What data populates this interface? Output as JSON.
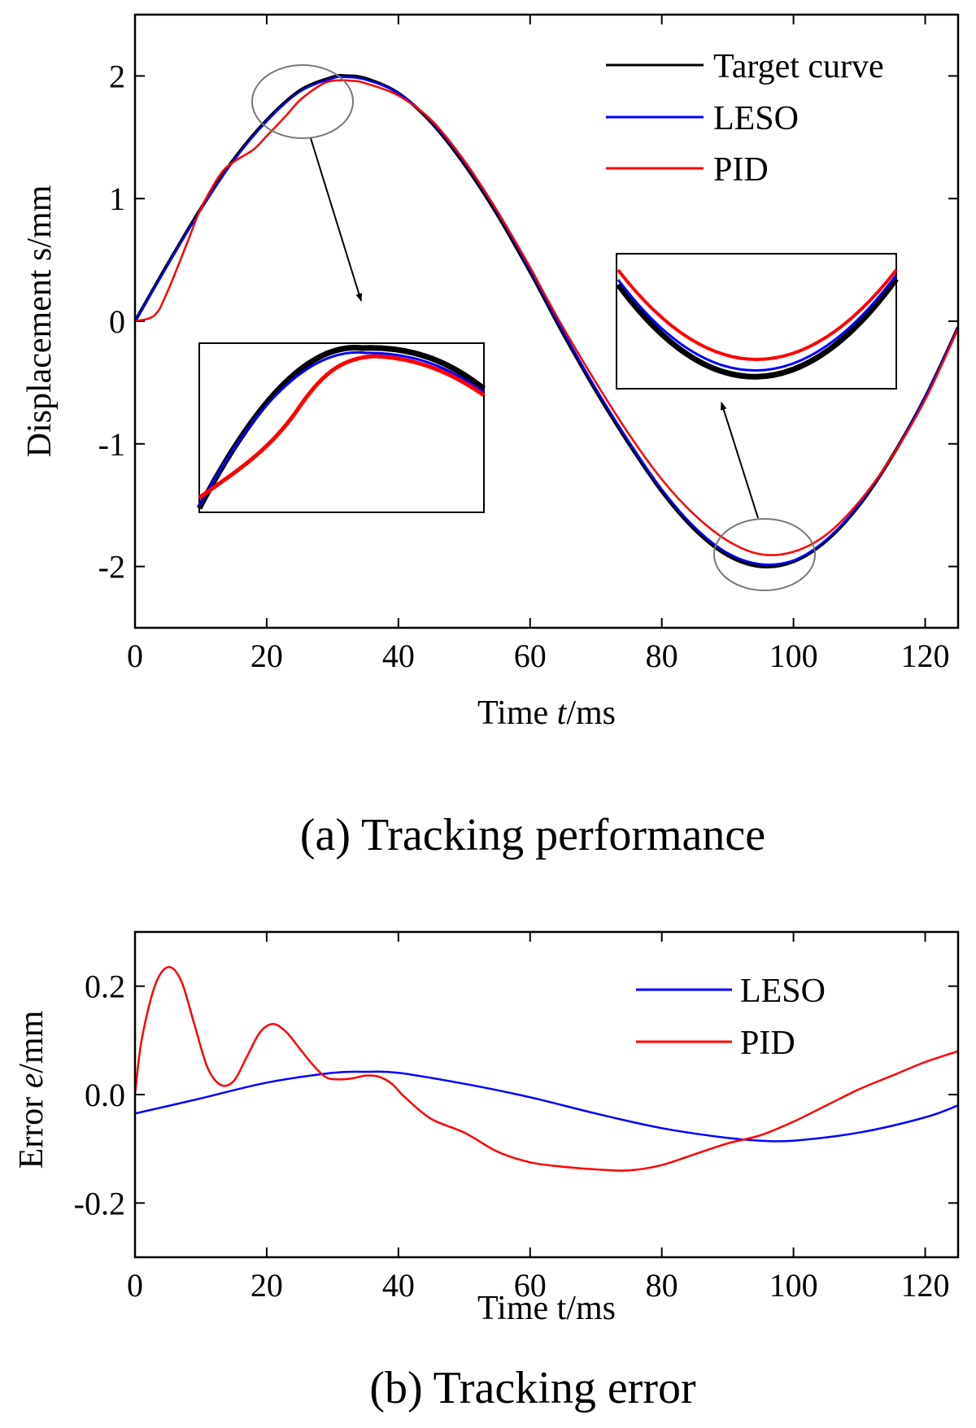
{
  "chart_data": [
    {
      "id": "panel_a",
      "type": "line",
      "title": "",
      "caption": "(a) Tracking performance",
      "xlabel": "Time t/ms",
      "ylabel": "Displacement s/mm",
      "xlim": [
        0,
        125
      ],
      "ylim": [
        -2.5,
        2.5
      ],
      "xticks": [
        0,
        20,
        40,
        60,
        80,
        100,
        120
      ],
      "yticks": [
        -2,
        -1,
        0,
        1,
        2
      ],
      "legend": "top-right",
      "series": [
        {
          "name": "Target curve",
          "color": "#000000",
          "x": [
            0,
            5,
            10,
            15,
            20,
            25,
            30,
            32,
            35,
            40,
            45,
            50,
            55,
            60,
            62,
            65,
            70,
            75,
            80,
            85,
            90,
            95,
            100,
            105,
            110,
            115,
            120,
            125
          ],
          "y": [
            0,
            0.47,
            0.92,
            1.32,
            1.64,
            1.88,
            1.99,
            2.0,
            1.98,
            1.86,
            1.62,
            1.28,
            0.87,
            0.4,
            0.2,
            -0.1,
            -0.57,
            -1.0,
            -1.39,
            -1.7,
            -1.91,
            -2.0,
            -1.96,
            -1.79,
            -1.5,
            -1.1,
            -0.62,
            -0.05
          ]
        },
        {
          "name": "LESO",
          "color": "#0000ff",
          "x": [
            0,
            5,
            10,
            15,
            20,
            25,
            30,
            32,
            35,
            40,
            45,
            50,
            55,
            60,
            62,
            65,
            70,
            75,
            80,
            85,
            90,
            95,
            100,
            105,
            110,
            115,
            120,
            125
          ],
          "y": [
            0,
            0.46,
            0.91,
            1.31,
            1.63,
            1.87,
            1.98,
            1.99,
            1.97,
            1.86,
            1.63,
            1.3,
            0.89,
            0.42,
            0.22,
            -0.08,
            -0.55,
            -0.98,
            -1.37,
            -1.68,
            -1.89,
            -1.98,
            -1.95,
            -1.78,
            -1.49,
            -1.1,
            -0.62,
            -0.05
          ]
        },
        {
          "name": "PID",
          "color": "#ff0000",
          "x": [
            0,
            3,
            5,
            8,
            10,
            13,
            15,
            18,
            20,
            23,
            25,
            28,
            30,
            33,
            35,
            40,
            45,
            50,
            55,
            60,
            62,
            65,
            70,
            75,
            80,
            85,
            90,
            95,
            100,
            105,
            110,
            115,
            120,
            125
          ],
          "y": [
            0,
            0.05,
            0.25,
            0.65,
            0.92,
            1.2,
            1.3,
            1.4,
            1.51,
            1.68,
            1.8,
            1.92,
            1.96,
            1.96,
            1.94,
            1.84,
            1.64,
            1.31,
            0.9,
            0.44,
            0.24,
            -0.05,
            -0.5,
            -0.92,
            -1.29,
            -1.58,
            -1.79,
            -1.9,
            -1.88,
            -1.74,
            -1.47,
            -1.1,
            -0.64,
            -0.06
          ]
        }
      ],
      "annotations": [
        "zoom inset near peak (t≈25 ms)",
        "zoom inset near trough (t≈95 ms)"
      ]
    },
    {
      "id": "panel_b",
      "type": "line",
      "title": "",
      "caption": "(b) Tracking error",
      "xlabel": "Time t/ms",
      "ylabel": "Error e/mm",
      "xlim": [
        0,
        125
      ],
      "ylim": [
        -0.3,
        0.3
      ],
      "xticks": [
        0,
        20,
        40,
        60,
        80,
        100,
        120
      ],
      "yticks": [
        -0.2,
        0.0,
        0.2
      ],
      "ytick_labels": [
        "-0.2",
        "0.0",
        "0.2"
      ],
      "legend": "top-right",
      "series": [
        {
          "name": "LESO",
          "color": "#0000ff",
          "x": [
            0,
            10,
            20,
            30,
            35,
            40,
            50,
            60,
            70,
            80,
            90,
            95,
            100,
            110,
            120,
            125
          ],
          "y": [
            -0.035,
            -0.007,
            0.022,
            0.04,
            0.042,
            0.04,
            0.02,
            -0.005,
            -0.035,
            -0.062,
            -0.08,
            -0.085,
            -0.085,
            -0.07,
            -0.042,
            -0.02
          ]
        },
        {
          "name": "PID",
          "color": "#ff0000",
          "x": [
            0,
            1,
            3,
            5,
            7,
            9,
            11,
            13,
            15,
            17,
            19,
            21,
            23,
            25,
            27,
            29,
            31,
            33,
            35,
            37,
            39,
            41,
            45,
            50,
            55,
            60,
            65,
            70,
            75,
            80,
            85,
            90,
            95,
            100,
            105,
            110,
            115,
            120,
            125
          ],
          "y": [
            0,
            0.1,
            0.2,
            0.235,
            0.21,
            0.13,
            0.05,
            0.018,
            0.025,
            0.07,
            0.115,
            0.13,
            0.115,
            0.085,
            0.055,
            0.032,
            0.028,
            0.03,
            0.035,
            0.033,
            0.02,
            -0.005,
            -0.045,
            -0.07,
            -0.105,
            -0.125,
            -0.133,
            -0.138,
            -0.14,
            -0.13,
            -0.11,
            -0.09,
            -0.075,
            -0.05,
            -0.02,
            0.01,
            0.035,
            0.06,
            0.08
          ]
        }
      ]
    }
  ]
}
